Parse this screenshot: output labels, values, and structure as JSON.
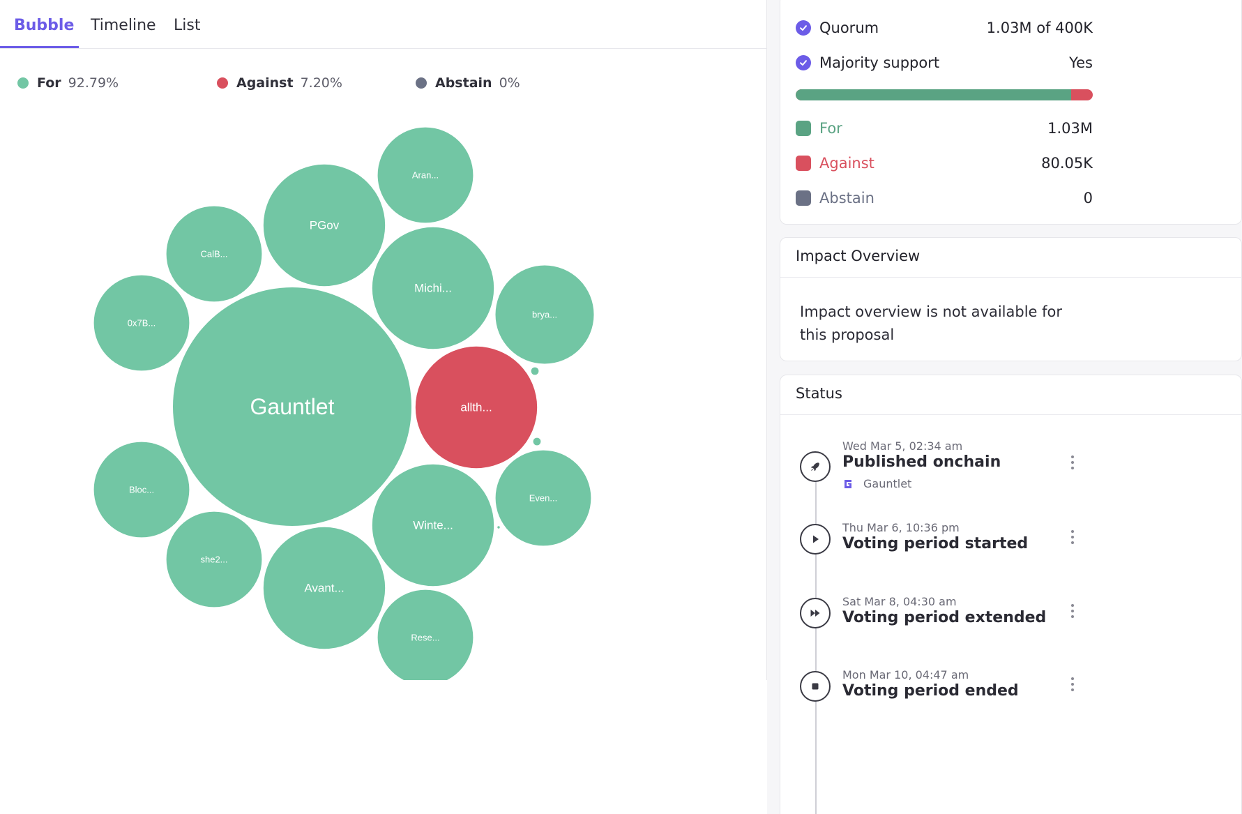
{
  "tabs": [
    {
      "label": "Bubble",
      "active": true
    },
    {
      "label": "Timeline",
      "active": false
    },
    {
      "label": "List",
      "active": false
    }
  ],
  "legend": [
    {
      "label": "For",
      "pct": "92.79%",
      "color": "#72c6a4"
    },
    {
      "label": "Against",
      "pct": "7.20%",
      "color": "#d9505e"
    },
    {
      "label": "Abstain",
      "pct": "0%",
      "color": "#6b7185"
    }
  ],
  "chart_data": {
    "type": "bubble",
    "title": "",
    "categories": [
      "For",
      "Against"
    ],
    "colors": {
      "For": "#72c6a4",
      "Against": "#d9505e"
    },
    "voters": [
      {
        "label": "Gauntlet",
        "vote": "For",
        "size": 100
      },
      {
        "label": "allth...",
        "vote": "Against",
        "size": 26
      },
      {
        "label": "PGov",
        "vote": "For",
        "size": 26
      },
      {
        "label": "Michi...",
        "vote": "For",
        "size": 26
      },
      {
        "label": "Winte...",
        "vote": "For",
        "size": 26
      },
      {
        "label": "Avant...",
        "vote": "For",
        "size": 26
      },
      {
        "label": "Aran...",
        "vote": "For",
        "size": 16
      },
      {
        "label": "brya...",
        "vote": "For",
        "size": 17
      },
      {
        "label": "CalB...",
        "vote": "For",
        "size": 16
      },
      {
        "label": "0x7B...",
        "vote": "For",
        "size": 16
      },
      {
        "label": "Bloc...",
        "vote": "For",
        "size": 16
      },
      {
        "label": "she2...",
        "vote": "For",
        "size": 16
      },
      {
        "label": "Even...",
        "vote": "For",
        "size": 16
      },
      {
        "label": "Rese...",
        "vote": "For",
        "size": 16
      },
      {
        "label": "",
        "vote": "For",
        "size": 0.1
      },
      {
        "label": "",
        "vote": "For",
        "size": 0.1
      },
      {
        "label": "",
        "vote": "For",
        "size": 0.01
      }
    ]
  },
  "summary": {
    "quorum_label": "Quorum",
    "quorum_value": "1.03M of 400K",
    "majority_label": "Majority support",
    "majority_value": "Yes",
    "for_share": 0.928,
    "for_label": "For",
    "for_value": "1.03M",
    "against_label": "Against",
    "against_value": "80.05K",
    "abstain_label": "Abstain",
    "abstain_value": "0",
    "for_color": "#5aa383",
    "against_color": "#d9505e",
    "abstain_color": "#6b7185",
    "accent_color": "#6c5ce7"
  },
  "impact": {
    "title": "Impact Overview",
    "text": "Impact overview is not available for this proposal"
  },
  "status": {
    "title": "Status",
    "events": [
      {
        "date": "Wed Mar 5, 02:34 am",
        "title": "Published onchain",
        "actor": "Gauntlet",
        "icon": "rocket-icon"
      },
      {
        "date": "Thu Mar 6, 10:36 pm",
        "title": "Voting period started",
        "icon": "play-icon"
      },
      {
        "date": "Sat Mar 8, 04:30 am",
        "title": "Voting period extended",
        "icon": "fast-forward-icon"
      },
      {
        "date": "Mon Mar 10, 04:47 am",
        "title": "Voting period ended",
        "icon": "stop-icon"
      }
    ]
  }
}
